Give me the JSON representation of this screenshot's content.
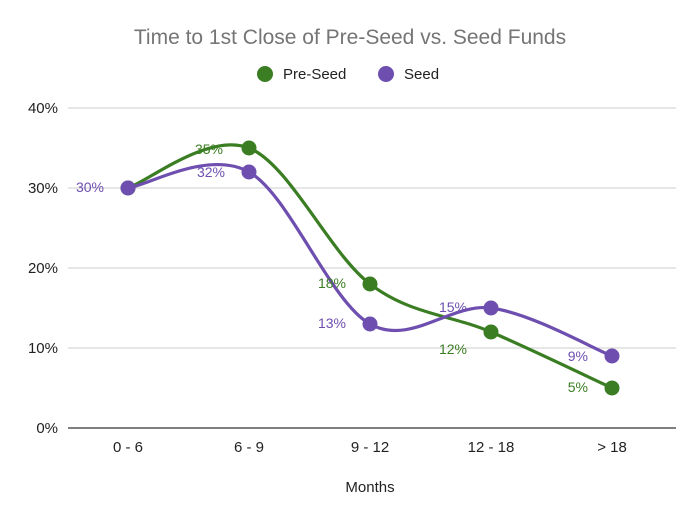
{
  "chart_data": {
    "type": "line",
    "title": "Time to 1st Close of Pre-Seed vs. Seed Funds",
    "xlabel": "Months",
    "ylabel": "",
    "categories": [
      "0 - 6",
      "6 - 9",
      "9 - 12",
      "12 - 18",
      "> 18"
    ],
    "ylim": [
      0,
      40
    ],
    "yticks": [
      "0%",
      "10%",
      "20%",
      "30%",
      "40%"
    ],
    "grid": true,
    "legend_position": "top",
    "smooth": true,
    "series": [
      {
        "name": "Pre-Seed",
        "color": "#3a7d22",
        "values": [
          30,
          35,
          18,
          12,
          5
        ],
        "labels": [
          "",
          "35%",
          "18%",
          "12%",
          "5%"
        ]
      },
      {
        "name": "Seed",
        "color": "#6e4fb0",
        "values": [
          30,
          32,
          13,
          15,
          9
        ],
        "labels": [
          "30%",
          "32%",
          "13%",
          "15%",
          "9%"
        ]
      }
    ]
  }
}
